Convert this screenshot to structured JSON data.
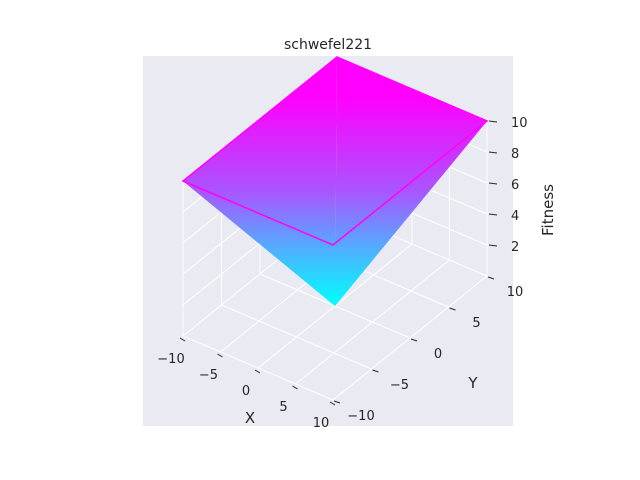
{
  "chart_data": {
    "type": "surface3d",
    "title": "schwefel221",
    "xlabel": "X",
    "ylabel": "Y",
    "zlabel": "Fitness",
    "xlim": [
      -10,
      10
    ],
    "ylim": [
      -10,
      10
    ],
    "zlim": [
      0,
      10
    ],
    "x_ticks": [
      {
        "v": -10,
        "label": "−10"
      },
      {
        "v": -5,
        "label": "−5"
      },
      {
        "v": 0,
        "label": "0"
      },
      {
        "v": 5,
        "label": "5"
      },
      {
        "v": 10,
        "label": "10"
      }
    ],
    "y_ticks": [
      {
        "v": -10,
        "label": "−10"
      },
      {
        "v": -5,
        "label": "−5"
      },
      {
        "v": 0,
        "label": "0"
      },
      {
        "v": 5,
        "label": "5"
      },
      {
        "v": 10,
        "label": "10"
      }
    ],
    "z_ticks": [
      {
        "v": 2,
        "label": "2"
      },
      {
        "v": 4,
        "label": "4"
      },
      {
        "v": 6,
        "label": "6"
      },
      {
        "v": 8,
        "label": "8"
      },
      {
        "v": 10,
        "label": "10"
      }
    ],
    "function": "max(|x|, |y|)",
    "surface_corners": [
      {
        "x": -10,
        "y": -10,
        "z": 10
      },
      {
        "x": 10,
        "y": -10,
        "z": 10
      },
      {
        "x": 10,
        "y": 10,
        "z": 10
      },
      {
        "x": -10,
        "y": 10,
        "z": 10
      }
    ],
    "minimum": {
      "x": 0,
      "y": 0,
      "z": 0
    },
    "colormap": [
      "#00ffff",
      "#ff00ff"
    ],
    "pane_color": "#eaeaf2",
    "grid": true
  }
}
